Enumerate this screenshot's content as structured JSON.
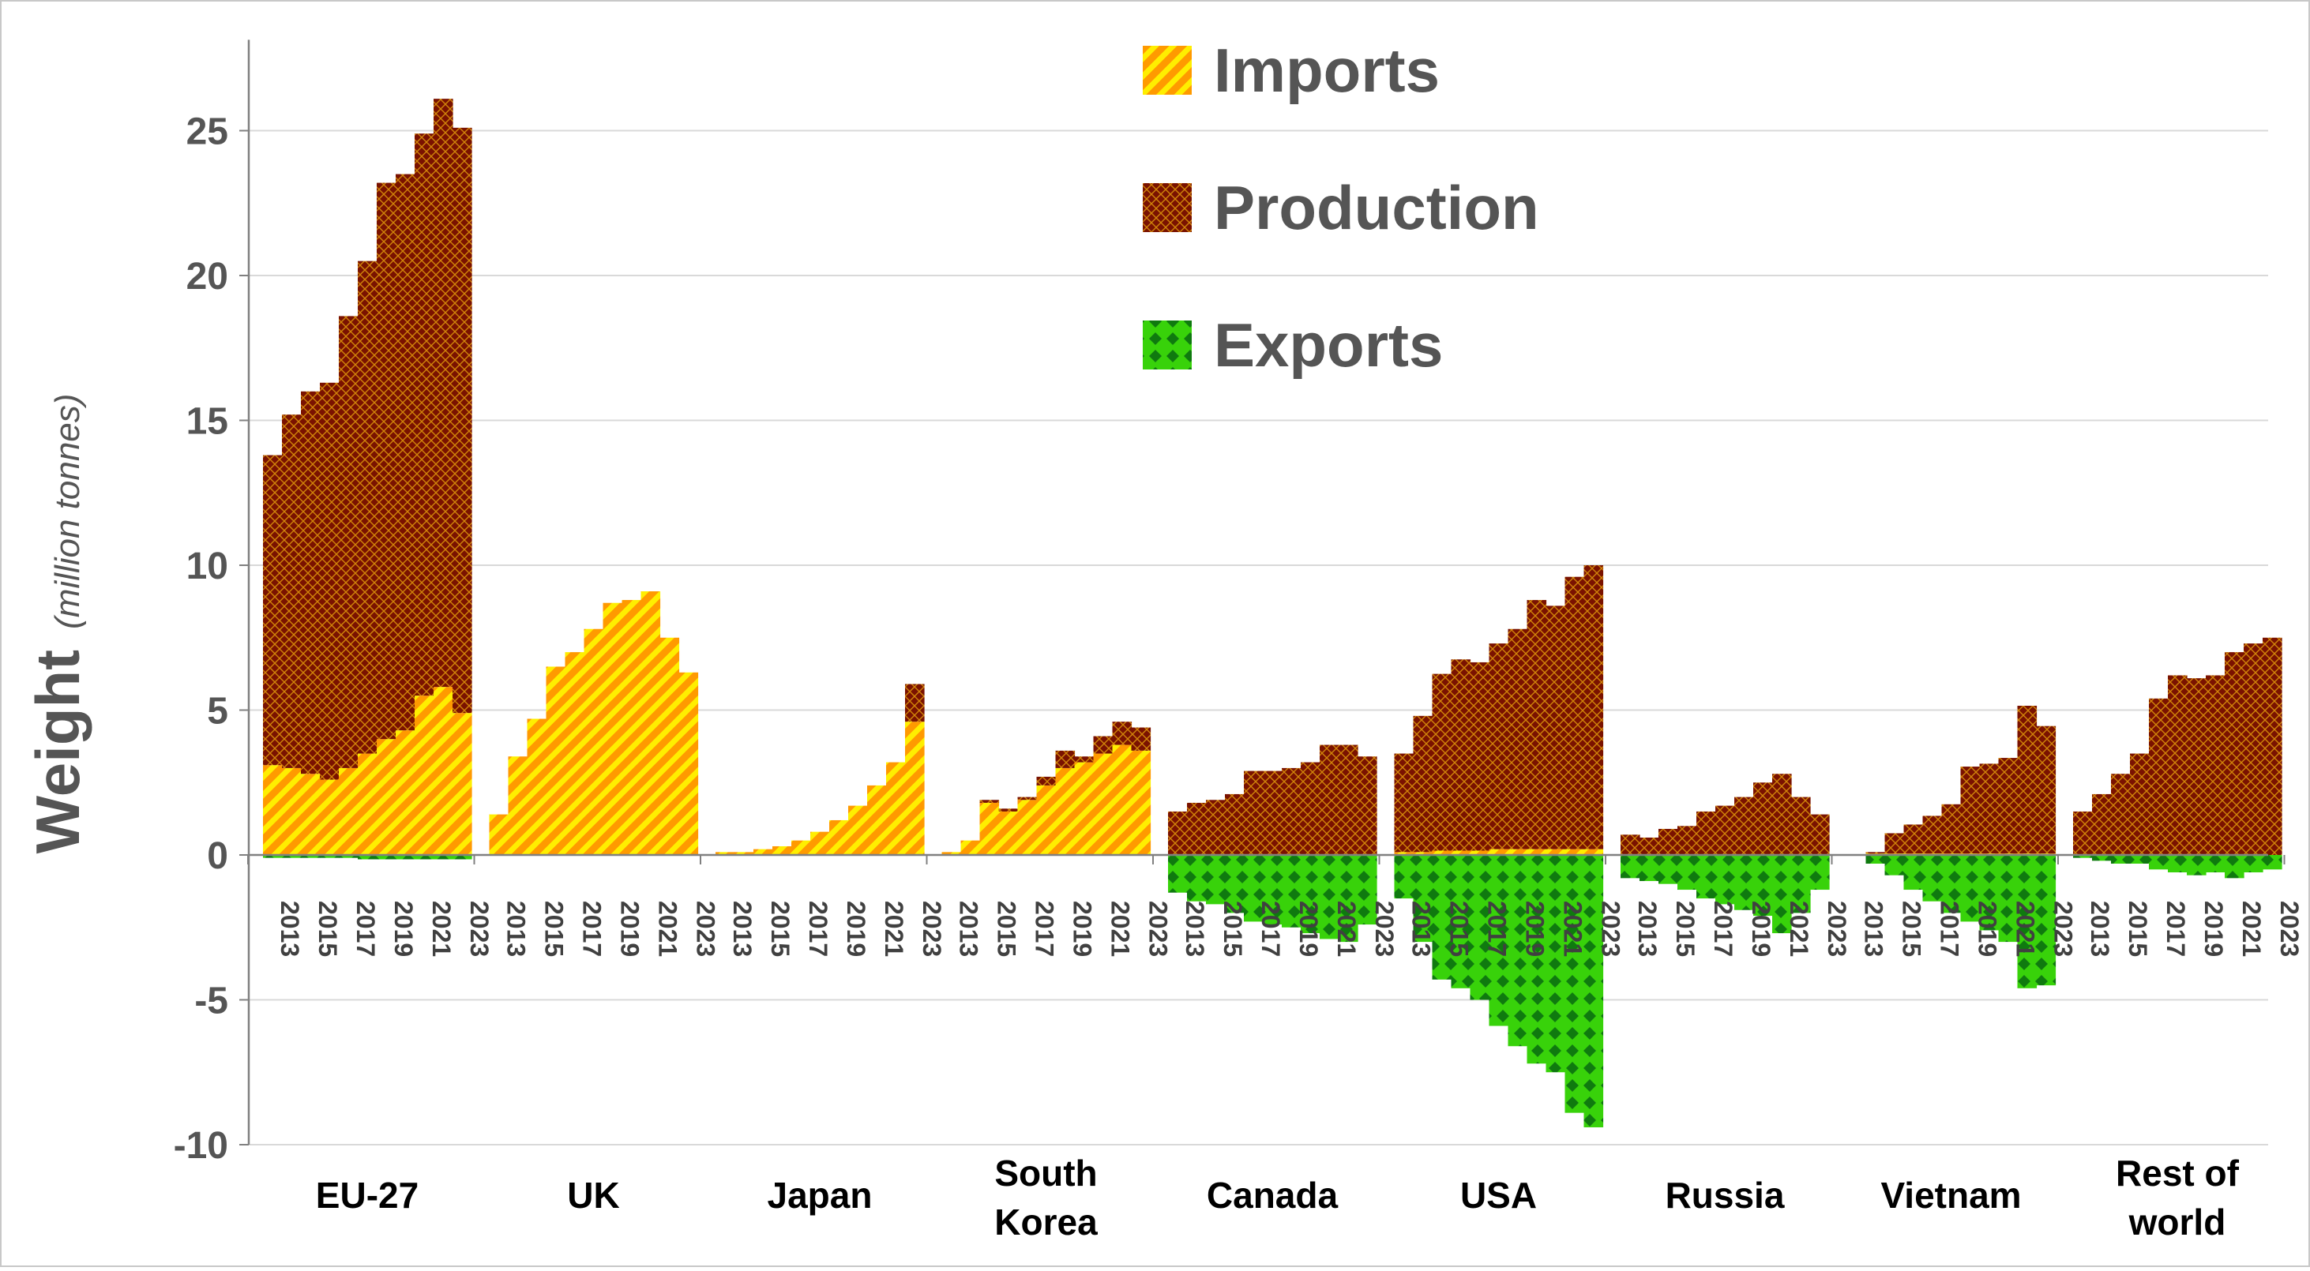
{
  "chart_data": {
    "type": "bar",
    "stacked": true,
    "xlabel": "",
    "ylabel": "Weight",
    "ylabel_unit": "(million tonnes)",
    "ylim": [
      -10,
      28
    ],
    "yticks": [
      -10,
      -5,
      0,
      5,
      10,
      15,
      20,
      25
    ],
    "grid": true,
    "legend_position": "top-center",
    "years": [
      2013,
      2014,
      2015,
      2016,
      2017,
      2018,
      2019,
      2020,
      2021,
      2022,
      2023
    ],
    "year_tick_labels": [
      "2013",
      "2015",
      "2017",
      "2019",
      "2021",
      "2023"
    ],
    "colors": {
      "imports_base": "#ff9a00",
      "imports_stripe": "#ffee00",
      "production_base": "#7a1200",
      "production_line": "#d1850a",
      "exports_base": "#38d20a",
      "exports_dot": "#0f7a0f",
      "grid": "#d9d9d9",
      "axis": "#808080"
    },
    "legend": [
      {
        "name": "Imports",
        "pattern": "imports"
      },
      {
        "name": "Production",
        "pattern": "production"
      },
      {
        "name": "Exports",
        "pattern": "exports"
      }
    ],
    "groups": [
      {
        "name": "EU-27",
        "label_lines": [
          "EU-27"
        ],
        "imports": [
          3.1,
          3.0,
          2.8,
          2.6,
          3.0,
          3.5,
          4.0,
          4.3,
          5.5,
          5.8,
          4.9
        ],
        "production": [
          10.7,
          12.2,
          13.2,
          13.7,
          15.6,
          17.0,
          19.2,
          19.2,
          19.4,
          20.3,
          20.2
        ],
        "exports": [
          -0.1,
          -0.1,
          -0.1,
          -0.1,
          -0.1,
          -0.15,
          -0.15,
          -0.15,
          -0.15,
          -0.15,
          -0.15
        ]
      },
      {
        "name": "UK",
        "label_lines": [
          "UK"
        ],
        "imports": [
          1.4,
          3.4,
          4.7,
          6.5,
          7.0,
          7.8,
          8.7,
          8.8,
          9.1,
          7.5,
          6.3
        ],
        "production": [
          0,
          0,
          0,
          0,
          0,
          0,
          0,
          0,
          0,
          0,
          0
        ],
        "exports": [
          0,
          0,
          0,
          0,
          0,
          0,
          0,
          0,
          0,
          0,
          0
        ]
      },
      {
        "name": "Japan",
        "label_lines": [
          "Japan"
        ],
        "imports": [
          0.1,
          0.1,
          0.2,
          0.3,
          0.5,
          0.8,
          1.2,
          1.7,
          2.4,
          3.2,
          4.6
        ],
        "production": [
          0,
          0,
          0,
          0,
          0,
          0,
          0,
          0,
          0,
          0,
          1.3
        ],
        "exports": [
          0,
          0,
          0,
          0,
          0,
          0,
          0,
          0,
          0,
          0,
          0
        ]
      },
      {
        "name": "South Korea",
        "label_lines": [
          "South",
          "Korea"
        ],
        "imports": [
          0.1,
          0.5,
          1.8,
          1.5,
          1.9,
          2.4,
          3.0,
          3.2,
          3.5,
          3.8,
          3.6
        ],
        "production": [
          0,
          0,
          0.1,
          0.1,
          0.1,
          0.3,
          0.6,
          0.2,
          0.6,
          0.8,
          0.8
        ],
        "exports": [
          0,
          0,
          0,
          0,
          0,
          0,
          0,
          0,
          0,
          0,
          0
        ]
      },
      {
        "name": "Canada",
        "label_lines": [
          "Canada"
        ],
        "imports": [
          0,
          0,
          0,
          0,
          0,
          0,
          0,
          0,
          0,
          0,
          0
        ],
        "production": [
          1.5,
          1.8,
          1.9,
          2.1,
          2.9,
          2.9,
          3.0,
          3.2,
          3.8,
          3.8,
          3.4
        ],
        "exports": [
          -1.3,
          -1.6,
          -1.7,
          -2.0,
          -2.3,
          -2.4,
          -2.5,
          -2.7,
          -2.9,
          -3.0,
          -2.4
        ]
      },
      {
        "name": "USA",
        "label_lines": [
          "USA"
        ],
        "imports": [
          0.1,
          0.1,
          0.15,
          0.15,
          0.15,
          0.2,
          0.2,
          0.2,
          0.2,
          0.2,
          0.2
        ],
        "production": [
          3.4,
          4.7,
          6.1,
          6.6,
          6.5,
          7.1,
          7.6,
          8.6,
          8.4,
          9.4,
          9.8
        ],
        "exports": [
          -1.5,
          -3.0,
          -4.3,
          -4.6,
          -5.0,
          -5.9,
          -6.6,
          -7.2,
          -7.5,
          -8.9,
          -9.4
        ]
      },
      {
        "name": "Russia",
        "label_lines": [
          "Russia"
        ],
        "imports": [
          0,
          0,
          0,
          0,
          0,
          0,
          0,
          0,
          0,
          0,
          0
        ],
        "production": [
          0.7,
          0.6,
          0.9,
          1.0,
          1.5,
          1.7,
          2.0,
          2.5,
          2.8,
          2.0,
          1.4
        ],
        "exports": [
          -0.8,
          -0.9,
          -1.0,
          -1.2,
          -1.5,
          -1.7,
          -1.9,
          -2.1,
          -2.7,
          -2.0,
          -1.2
        ]
      },
      {
        "name": "Vietnam",
        "label_lines": [
          "Vietnam"
        ],
        "imports": [
          0,
          0.05,
          0.05,
          0.05,
          0.05,
          0.05,
          0.05,
          0.05,
          0.05,
          0.05,
          0.05
        ],
        "production": [
          0,
          0.05,
          0.7,
          1.0,
          1.3,
          1.7,
          3.0,
          3.1,
          3.3,
          5.1,
          4.4
        ],
        "exports": [
          0,
          -0.3,
          -0.7,
          -1.2,
          -1.6,
          -2.0,
          -2.3,
          -2.6,
          -3.0,
          -4.6,
          -4.5
        ]
      },
      {
        "name": "Rest of world",
        "label_lines": [
          "Rest of",
          "world"
        ],
        "imports": [
          0,
          0,
          0,
          0,
          0,
          0,
          0,
          0,
          0,
          0,
          0
        ],
        "production": [
          1.5,
          2.1,
          2.8,
          3.5,
          5.4,
          6.2,
          6.1,
          6.2,
          7.0,
          7.3,
          7.5
        ],
        "exports": [
          -0.1,
          -0.2,
          -0.3,
          -0.3,
          -0.5,
          -0.6,
          -0.7,
          -0.6,
          -0.8,
          -0.6,
          -0.5
        ]
      }
    ]
  }
}
